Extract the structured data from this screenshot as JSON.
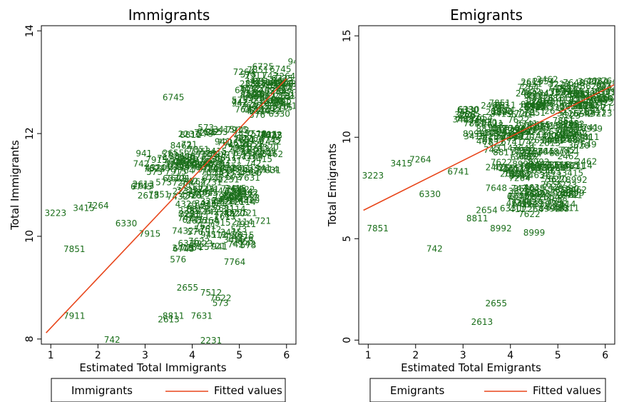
{
  "chart_data": [
    {
      "type": "scatter",
      "title": "Immigrants",
      "xlabel": "Estimated Total Immigrants",
      "ylabel": "Total Immigrants",
      "xticks": [
        1,
        2,
        3,
        4,
        5,
        6
      ],
      "yticks": [
        8,
        10,
        12,
        14
      ],
      "xlim": [
        0.8,
        6.2
      ],
      "ylim": [
        7.9,
        14.1
      ],
      "grid": false,
      "legend": {
        "placement": "bottom",
        "entries": [
          "Immigrants",
          "Fitted values"
        ]
      },
      "colors": {
        "markers": "#1a6e1a",
        "fit": "#e8461b"
      },
      "fit": {
        "x": [
          0.9,
          6.0
        ],
        "y": [
          8.12,
          13.07
        ]
      },
      "labeled_points": [
        {
          "label": "3223",
          "x": 1.1,
          "y": 10.45
        },
        {
          "label": "3415",
          "x": 1.7,
          "y": 10.55
        },
        {
          "label": "7264",
          "x": 2.0,
          "y": 10.6
        },
        {
          "label": "6330",
          "x": 2.6,
          "y": 10.25
        },
        {
          "label": "7915",
          "x": 3.1,
          "y": 10.05
        },
        {
          "label": "7851",
          "x": 1.5,
          "y": 9.75
        },
        {
          "label": "7911",
          "x": 1.5,
          "y": 8.45
        },
        {
          "label": "742",
          "x": 2.3,
          "y": 7.98
        },
        {
          "label": "2613",
          "x": 3.5,
          "y": 8.38
        },
        {
          "label": "8811",
          "x": 3.6,
          "y": 8.45
        },
        {
          "label": "7631",
          "x": 4.2,
          "y": 8.45
        },
        {
          "label": "2231",
          "x": 4.4,
          "y": 7.97
        },
        {
          "label": "6745",
          "x": 3.6,
          "y": 12.7
        },
        {
          "label": "941",
          "x": 6.2,
          "y": 13.4
        },
        {
          "label": "721",
          "x": 5.5,
          "y": 10.3
        },
        {
          "label": "576",
          "x": 3.7,
          "y": 9.55
        },
        {
          "label": "2655",
          "x": 3.9,
          "y": 9.0
        },
        {
          "label": "7432",
          "x": 3.8,
          "y": 10.1
        },
        {
          "label": "573",
          "x": 4.6,
          "y": 8.7
        },
        {
          "label": "7512",
          "x": 4.4,
          "y": 8.9
        },
        {
          "label": "7622",
          "x": 4.6,
          "y": 8.8
        },
        {
          "label": "7764",
          "x": 4.9,
          "y": 9.5
        },
        {
          "label": "8462",
          "x": 5.7,
          "y": 11.6
        },
        {
          "label": "4320",
          "x": 5.2,
          "y": 10.7
        },
        {
          "label": "2114",
          "x": 5.6,
          "y": 11.3
        },
        {
          "label": "6725",
          "x": 5.5,
          "y": 13.3
        }
      ],
      "cloud_regions": [
        {
          "x": [
            5.0,
            6.1
          ],
          "y": [
            12.3,
            13.2
          ]
        },
        {
          "x": [
            3.7,
            5.7
          ],
          "y": [
            11.2,
            12.1
          ]
        },
        {
          "x": [
            2.9,
            5.3
          ],
          "y": [
            10.6,
            11.6
          ]
        },
        {
          "x": [
            3.8,
            5.3
          ],
          "y": [
            9.7,
            11.0
          ]
        }
      ]
    },
    {
      "type": "scatter",
      "title": "Emigrants",
      "xlabel": "Estimated Total Emigrants",
      "ylabel": "Total Emigrants",
      "xticks": [
        1,
        2,
        3,
        4,
        5,
        6
      ],
      "yticks": [
        0,
        5,
        10,
        15
      ],
      "xlim": [
        0.8,
        6.2
      ],
      "ylim": [
        -0.2,
        15.5
      ],
      "grid": false,
      "legend": {
        "placement": "bottom",
        "entries": [
          "Emigrants",
          "Fitted values"
        ]
      },
      "colors": {
        "markers": "#1a6e1a",
        "fit": "#e8461b"
      },
      "fit": {
        "x": [
          0.9,
          6.2
        ],
        "y": [
          6.4,
          12.6
        ]
      },
      "labeled_points": [
        {
          "label": "3223",
          "x": 1.1,
          "y": 8.1
        },
        {
          "label": "3415",
          "x": 1.7,
          "y": 8.7
        },
        {
          "label": "7264",
          "x": 2.1,
          "y": 8.9
        },
        {
          "label": "6330",
          "x": 2.3,
          "y": 7.2
        },
        {
          "label": "7851",
          "x": 1.2,
          "y": 5.5
        },
        {
          "label": "742",
          "x": 2.4,
          "y": 4.5
        },
        {
          "label": "2655",
          "x": 3.7,
          "y": 1.8
        },
        {
          "label": "2613",
          "x": 3.4,
          "y": 0.9
        },
        {
          "label": "8999",
          "x": 4.5,
          "y": 5.3
        },
        {
          "label": "8992",
          "x": 3.8,
          "y": 5.5
        },
        {
          "label": "8811",
          "x": 3.3,
          "y": 6.0
        },
        {
          "label": "2654",
          "x": 3.5,
          "y": 6.4
        },
        {
          "label": "7648",
          "x": 3.7,
          "y": 7.5
        },
        {
          "label": "2114",
          "x": 5.5,
          "y": 8.6
        },
        {
          "label": "7622",
          "x": 4.4,
          "y": 6.2
        },
        {
          "label": "7649",
          "x": 4.5,
          "y": 7.5
        },
        {
          "label": "2462",
          "x": 5.4,
          "y": 10.2
        },
        {
          "label": "463",
          "x": 4.9,
          "y": 8.3
        },
        {
          "label": "3620",
          "x": 5.7,
          "y": 12.5
        },
        {
          "label": "411",
          "x": 4.5,
          "y": 12.0
        },
        {
          "label": "6741",
          "x": 2.9,
          "y": 8.3
        }
      ],
      "cloud_regions": [
        {
          "x": [
            4.3,
            6.2
          ],
          "y": [
            11.0,
            12.7
          ]
        },
        {
          "x": [
            3.0,
            5.8
          ],
          "y": [
            9.8,
            11.6
          ]
        },
        {
          "x": [
            3.4,
            5.6
          ],
          "y": [
            8.3,
            10.4
          ]
        },
        {
          "x": [
            4.0,
            5.4
          ],
          "y": [
            6.3,
            8.6
          ]
        }
      ]
    }
  ]
}
